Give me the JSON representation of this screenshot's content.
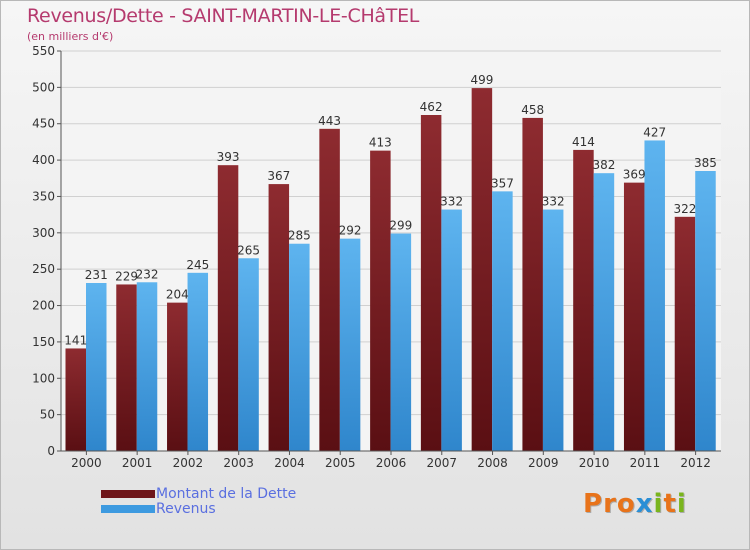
{
  "title": "Revenus/Dette - SAINT-MARTIN-LE-CHâTEL",
  "subtitle": "(en milliers d'€)",
  "logo": {
    "text": "Proxiti",
    "colors": [
      "#e8731a",
      "#e8731a",
      "#e8731a",
      "#2a8fd6",
      "#7ab51d",
      "#e8731a",
      "#7ab51d"
    ]
  },
  "chart_data": {
    "type": "bar",
    "categories": [
      "2000",
      "2001",
      "2002",
      "2003",
      "2004",
      "2005",
      "2006",
      "2007",
      "2008",
      "2009",
      "2010",
      "2011",
      "2012"
    ],
    "series": [
      {
        "name": "Montant de la Dette",
        "color": "#7a1e22",
        "values": [
          141,
          229,
          204,
          393,
          367,
          443,
          413,
          462,
          499,
          458,
          414,
          369,
          322
        ]
      },
      {
        "name": "Revenus",
        "color": "#4ea6e4",
        "values": [
          231,
          232,
          245,
          265,
          285,
          292,
          299,
          332,
          357,
          332,
          382,
          427,
          385
        ]
      }
    ],
    "ylim": [
      0,
      550
    ],
    "yticks": [
      "0",
      "50",
      "100",
      "150",
      "200",
      "250",
      "300",
      "350",
      "400",
      "450",
      "500",
      "550"
    ],
    "grid": true,
    "legend": "bottom-left"
  }
}
